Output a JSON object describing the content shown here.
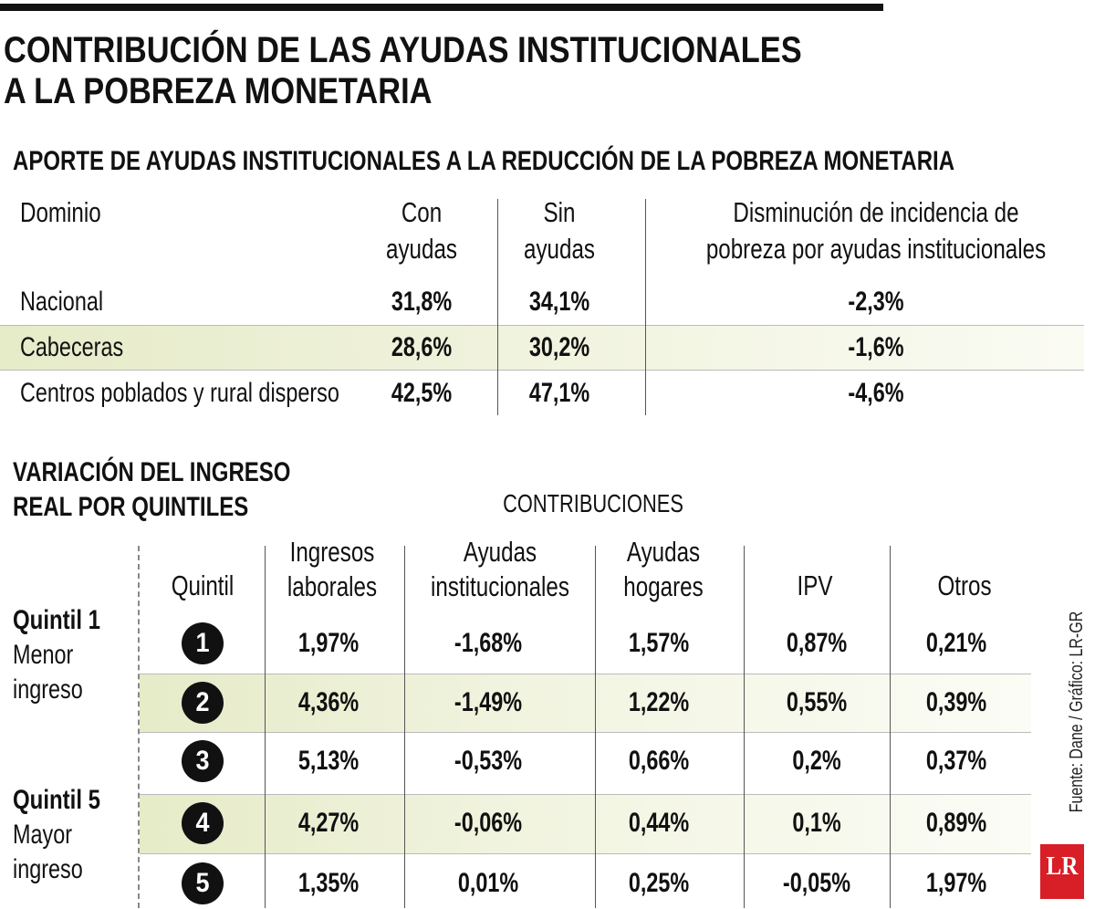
{
  "title": [
    "CONTRIBUCIÓN DE LAS AYUDAS INSTITUCIONALES",
    "A LA POBREZA MONETARIA"
  ],
  "table1": {
    "title": "APORTE DE AYUDAS INSTITUCIONALES A LA REDUCCIÓN DE LA POBREZA MONETARIA",
    "columns": [
      [
        "Dominio"
      ],
      [
        "Con",
        "ayudas"
      ],
      [
        "Sin",
        "ayudas"
      ],
      [
        "Disminución de incidencia de",
        "pobreza por ayudas institucionales"
      ]
    ],
    "rows": [
      [
        "Nacional",
        "31,8%",
        "34,1%",
        "-2,3%"
      ],
      [
        "Cabeceras",
        "28,6%",
        "30,2%",
        "-1,6%"
      ],
      [
        "Centros poblados y rural disperso",
        "42,5%",
        "47,1%",
        "-4,6%"
      ]
    ]
  },
  "table2": {
    "title": [
      "VARIACIÓN DEL INGRESO",
      "REAL POR QUINTILES"
    ],
    "group_label": "CONTRIBUCIONES",
    "columns": [
      [
        "Quintil"
      ],
      [
        "Ingresos",
        "laborales"
      ],
      [
        "Ayudas",
        "institucionales"
      ],
      [
        "Ayudas",
        "hogares"
      ],
      [
        "IPV"
      ],
      [
        "Otros"
      ]
    ],
    "rows": [
      [
        "1",
        "1,97%",
        "-1,68%",
        "1,57%",
        "0,87%",
        "0,21%"
      ],
      [
        "2",
        "4,36%",
        "-1,49%",
        "1,22%",
        "0,55%",
        "0,39%"
      ],
      [
        "3",
        "5,13%",
        "-0,53%",
        "0,66%",
        "0,2%",
        "0,37%"
      ],
      [
        "4",
        "4,27%",
        "-0,06%",
        "0,44%",
        "0,1%",
        "0,89%"
      ],
      [
        "5",
        "1,35%",
        "0,01%",
        "0,25%",
        "-0,05%",
        "1,97%"
      ]
    ],
    "side_labels": [
      {
        "name": "Quintil 1",
        "detail": [
          "Menor",
          "ingreso"
        ]
      },
      {
        "name": "Quintil 5",
        "detail": [
          "Mayor",
          "ingreso"
        ]
      }
    ]
  },
  "source": "Fuente: Dane / Gráfico: LR-GR",
  "logo": "LR"
}
